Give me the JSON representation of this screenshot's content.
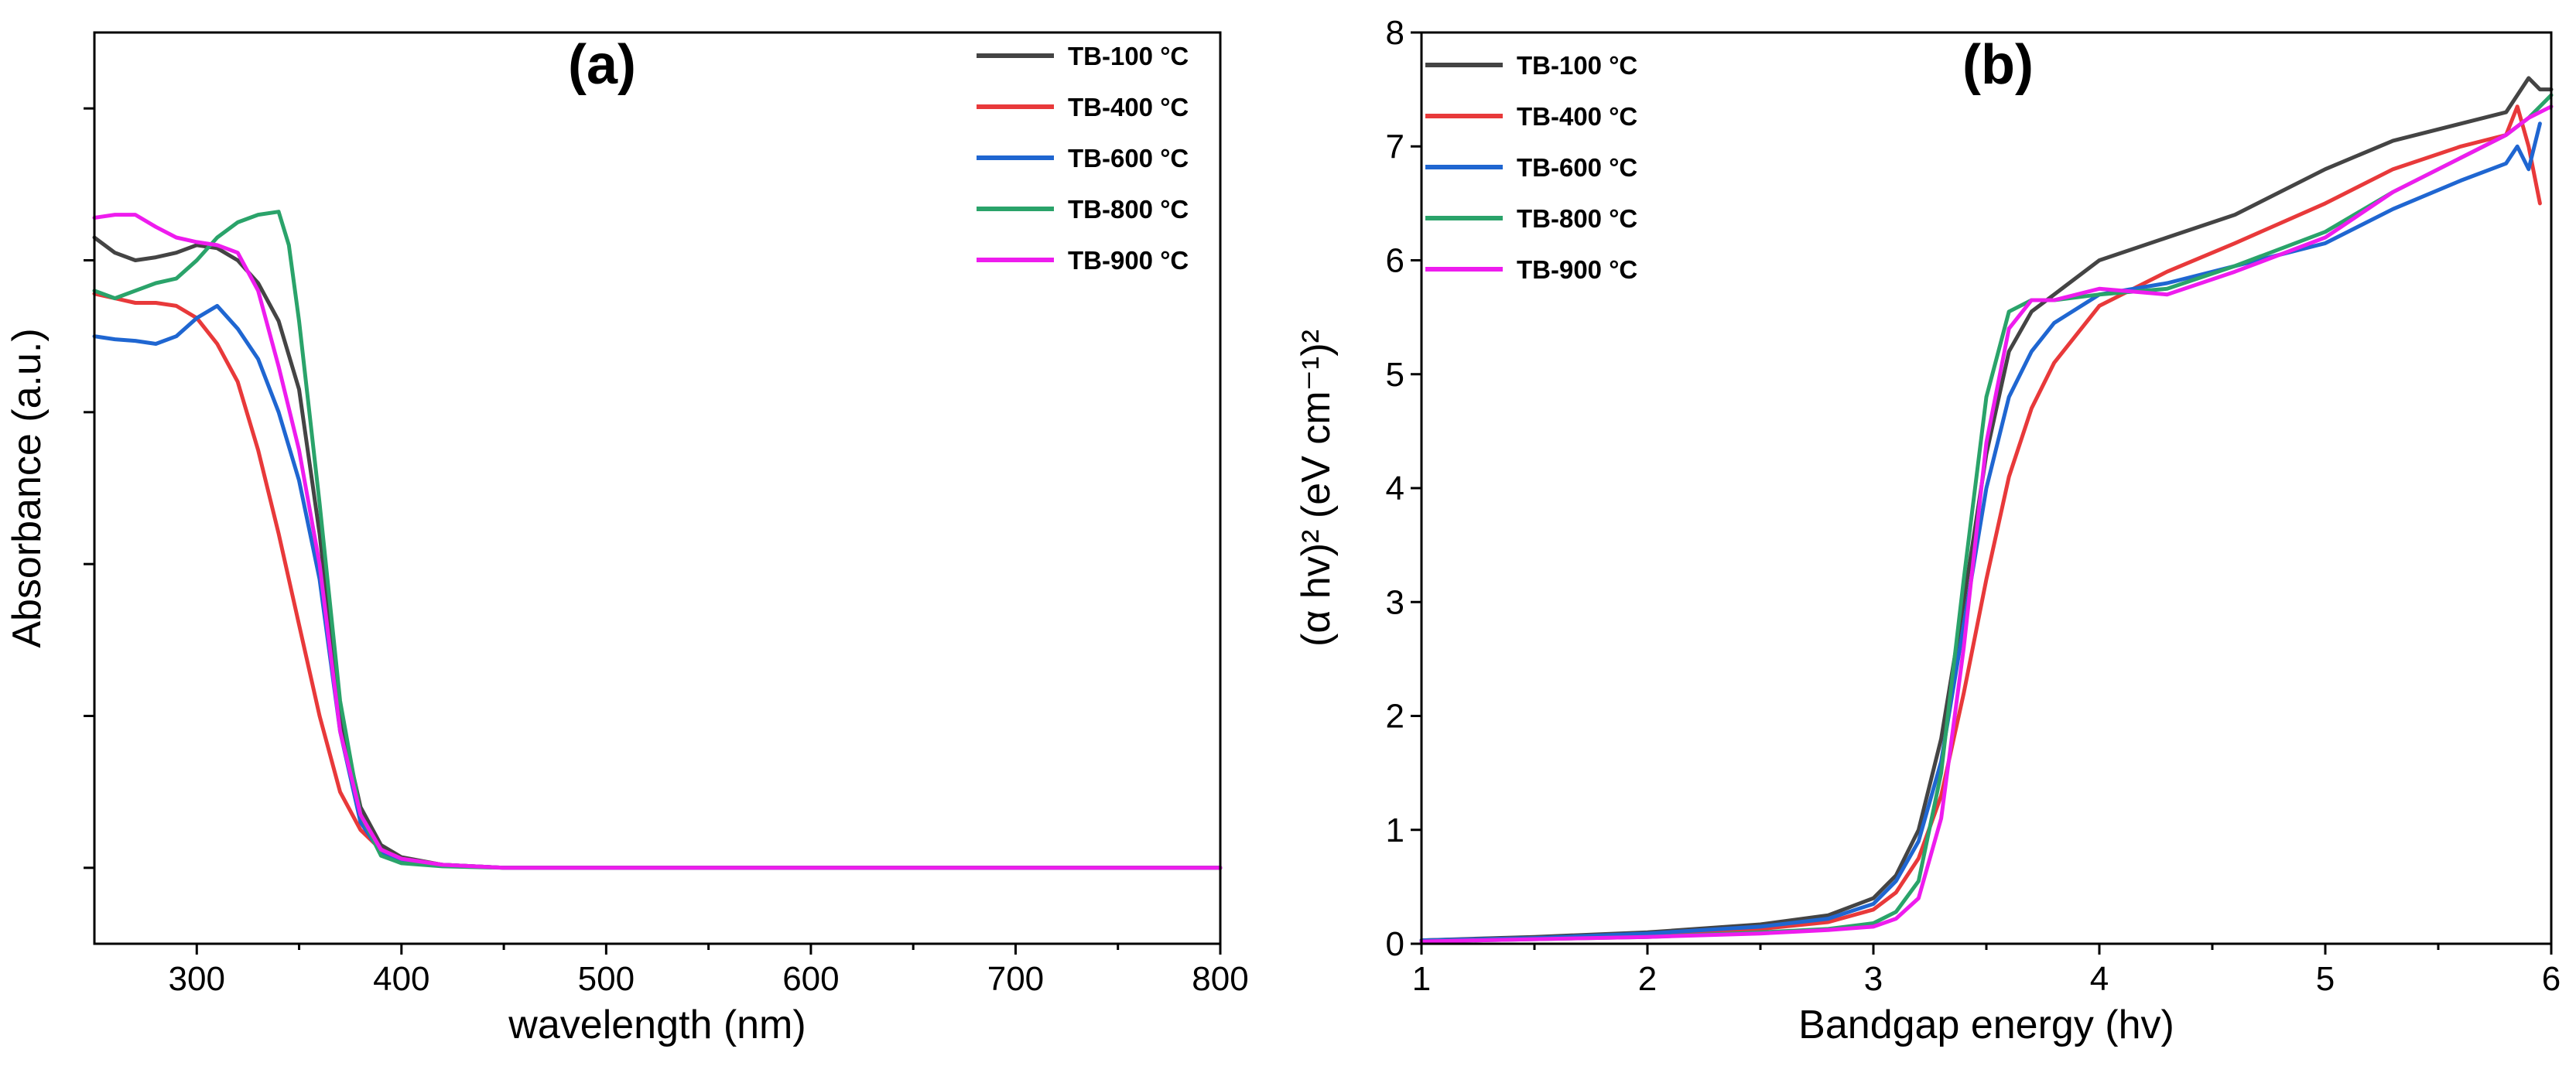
{
  "chart_data": [
    {
      "type": "line",
      "title": "(a)",
      "xlabel": "wavelength (nm)",
      "ylabel": "Absorbance (a.u.)",
      "xlim": [
        250,
        800
      ],
      "ylim": [
        -0.5,
        5.5
      ],
      "x_ticks": [
        300,
        400,
        500,
        600,
        700,
        800
      ],
      "y_ticks": [
        0,
        1,
        2,
        3,
        4,
        5
      ],
      "y_tick_labels_visible": false,
      "legend": "top-right",
      "series": [
        {
          "name": "TB-100 °C",
          "color": "#444444",
          "x": [
            250,
            260,
            270,
            280,
            290,
            300,
            310,
            320,
            330,
            340,
            350,
            360,
            370,
            380,
            390,
            400,
            420,
            450,
            500,
            600,
            700,
            800
          ],
          "y": [
            4.15,
            4.05,
            4.0,
            4.02,
            4.05,
            4.1,
            4.08,
            4.0,
            3.85,
            3.6,
            3.15,
            2.2,
            1.0,
            0.4,
            0.15,
            0.07,
            0.02,
            0.0,
            0.0,
            0.0,
            0.0,
            0.0
          ]
        },
        {
          "name": "TB-400 °C",
          "color": "#e8393a",
          "x": [
            250,
            260,
            270,
            280,
            290,
            300,
            310,
            320,
            330,
            340,
            350,
            360,
            370,
            380,
            390,
            400,
            420,
            450,
            500,
            600,
            700,
            800
          ],
          "y": [
            3.78,
            3.75,
            3.72,
            3.72,
            3.7,
            3.62,
            3.45,
            3.2,
            2.75,
            2.2,
            1.6,
            1.0,
            0.5,
            0.25,
            0.12,
            0.06,
            0.02,
            0.0,
            0.0,
            0.0,
            0.0,
            0.0
          ]
        },
        {
          "name": "TB-600 °C",
          "color": "#1f66d1",
          "x": [
            250,
            260,
            270,
            280,
            290,
            300,
            310,
            320,
            330,
            340,
            350,
            360,
            370,
            380,
            390,
            400,
            420,
            450,
            500,
            600,
            700,
            800
          ],
          "y": [
            3.5,
            3.48,
            3.47,
            3.45,
            3.5,
            3.62,
            3.7,
            3.55,
            3.35,
            3.0,
            2.55,
            1.9,
            0.9,
            0.3,
            0.1,
            0.05,
            0.02,
            0.0,
            0.0,
            0.0,
            0.0,
            0.0
          ]
        },
        {
          "name": "TB-800 °C",
          "color": "#2aa36a",
          "x": [
            250,
            260,
            270,
            280,
            290,
            300,
            310,
            320,
            330,
            340,
            345,
            350,
            355,
            360,
            370,
            380,
            390,
            400,
            420,
            450,
            500,
            600,
            700,
            800
          ],
          "y": [
            3.8,
            3.75,
            3.8,
            3.85,
            3.88,
            4.0,
            4.15,
            4.25,
            4.3,
            4.32,
            4.1,
            3.6,
            3.0,
            2.4,
            1.1,
            0.35,
            0.08,
            0.03,
            0.01,
            0.0,
            0.0,
            0.0,
            0.0,
            0.0
          ]
        },
        {
          "name": "TB-900 °C",
          "color": "#ee1cee",
          "x": [
            250,
            260,
            270,
            280,
            290,
            300,
            310,
            320,
            330,
            340,
            350,
            360,
            370,
            380,
            390,
            400,
            420,
            450,
            500,
            600,
            700,
            800
          ],
          "y": [
            4.28,
            4.3,
            4.3,
            4.22,
            4.15,
            4.12,
            4.1,
            4.05,
            3.8,
            3.3,
            2.75,
            2.0,
            0.9,
            0.35,
            0.12,
            0.06,
            0.02,
            0.0,
            0.0,
            0.0,
            0.0,
            0.0
          ]
        }
      ]
    },
    {
      "type": "line",
      "title": "(b)",
      "xlabel": "Bandgap energy (hv)",
      "ylabel": "(α hv)² (eV cm⁻¹)²",
      "xlim": [
        1,
        6
      ],
      "ylim": [
        0,
        8
      ],
      "x_ticks": [
        1,
        2,
        3,
        4,
        5,
        6
      ],
      "y_ticks": [
        0,
        1,
        2,
        3,
        4,
        5,
        6,
        7,
        8
      ],
      "legend": "top-left",
      "series": [
        {
          "name": "TB-100 °C",
          "color": "#444444",
          "x": [
            1,
            1.5,
            2,
            2.5,
            2.8,
            3,
            3.1,
            3.2,
            3.3,
            3.4,
            3.5,
            3.6,
            3.7,
            3.8,
            4,
            4.3,
            4.6,
            5,
            5.3,
            5.6,
            5.8,
            5.85,
            5.9,
            5.95,
            6
          ],
          "y": [
            0.03,
            0.06,
            0.1,
            0.17,
            0.25,
            0.4,
            0.6,
            1.0,
            1.8,
            3.0,
            4.3,
            5.2,
            5.55,
            5.7,
            6.0,
            6.2,
            6.4,
            6.8,
            7.05,
            7.2,
            7.3,
            7.45,
            7.6,
            7.5,
            7.5
          ]
        },
        {
          "name": "TB-400 °C",
          "color": "#e8393a",
          "x": [
            1,
            1.5,
            2,
            2.5,
            2.8,
            3,
            3.1,
            3.2,
            3.3,
            3.4,
            3.5,
            3.6,
            3.7,
            3.8,
            4,
            4.3,
            4.6,
            5,
            5.3,
            5.6,
            5.8,
            5.85,
            5.9,
            5.95
          ],
          "y": [
            0.03,
            0.05,
            0.08,
            0.13,
            0.19,
            0.3,
            0.45,
            0.75,
            1.3,
            2.2,
            3.2,
            4.1,
            4.7,
            5.1,
            5.6,
            5.9,
            6.15,
            6.5,
            6.8,
            7.0,
            7.1,
            7.35,
            7.0,
            6.5
          ]
        },
        {
          "name": "TB-600 °C",
          "color": "#1f66d1",
          "x": [
            1,
            1.5,
            2,
            2.5,
            2.8,
            3,
            3.1,
            3.2,
            3.3,
            3.4,
            3.5,
            3.6,
            3.7,
            3.8,
            4,
            4.3,
            4.6,
            5,
            5.3,
            5.6,
            5.8,
            5.85,
            5.9,
            5.95
          ],
          "y": [
            0.03,
            0.05,
            0.09,
            0.15,
            0.22,
            0.35,
            0.55,
            0.9,
            1.6,
            2.8,
            4.0,
            4.8,
            5.2,
            5.45,
            5.7,
            5.8,
            5.95,
            6.15,
            6.45,
            6.7,
            6.85,
            7.0,
            6.8,
            7.2
          ]
        },
        {
          "name": "TB-800 °C",
          "color": "#2aa36a",
          "x": [
            1,
            1.5,
            2,
            2.5,
            2.8,
            3,
            3.1,
            3.2,
            3.3,
            3.4,
            3.5,
            3.6,
            3.7,
            3.8,
            4,
            4.3,
            4.6,
            5,
            5.3,
            5.6,
            5.8,
            5.9,
            6
          ],
          "y": [
            0.02,
            0.04,
            0.06,
            0.1,
            0.13,
            0.18,
            0.28,
            0.55,
            1.5,
            3.2,
            4.8,
            5.55,
            5.65,
            5.65,
            5.7,
            5.75,
            5.95,
            6.25,
            6.6,
            6.9,
            7.1,
            7.25,
            7.45
          ]
        },
        {
          "name": "TB-900 °C",
          "color": "#ee1cee",
          "x": [
            1,
            1.5,
            2,
            2.5,
            2.8,
            3,
            3.1,
            3.2,
            3.3,
            3.4,
            3.5,
            3.6,
            3.7,
            3.8,
            4,
            4.3,
            4.6,
            5,
            5.3,
            5.6,
            5.8,
            5.9,
            6
          ],
          "y": [
            0.02,
            0.04,
            0.06,
            0.09,
            0.12,
            0.15,
            0.22,
            0.4,
            1.1,
            2.6,
            4.4,
            5.4,
            5.65,
            5.65,
            5.75,
            5.7,
            5.9,
            6.2,
            6.6,
            6.9,
            7.1,
            7.25,
            7.35
          ]
        }
      ]
    }
  ]
}
